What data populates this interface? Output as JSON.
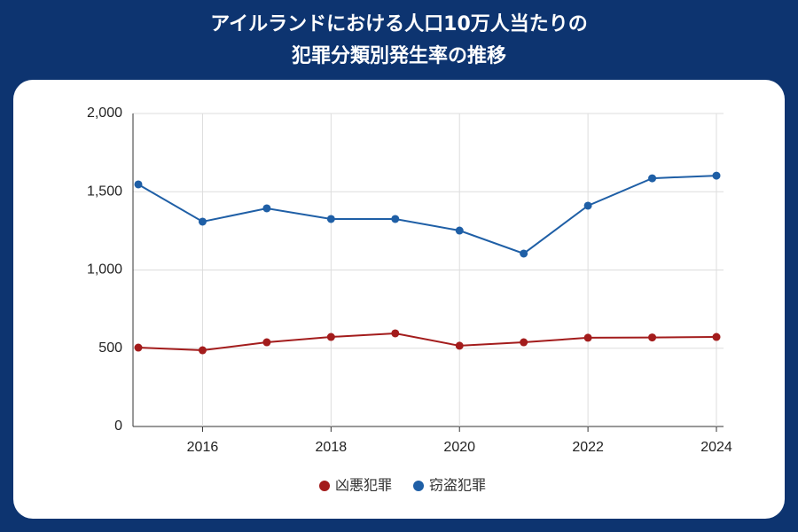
{
  "chart_data": {
    "type": "line",
    "title": [
      "アイルランドにおける人口10万人当たりの",
      "犯罪分類別発生率の推移"
    ],
    "x": [
      2015,
      2016,
      2017,
      2018,
      2019,
      2020,
      2021,
      2022,
      2023,
      2024
    ],
    "series": [
      {
        "name": "凶悪犯罪",
        "color": "#a31c1c",
        "values": [
          504,
          487,
          538,
          572,
          595,
          516,
          538,
          567,
          569,
          572
        ]
      },
      {
        "name": "窃盗犯罪",
        "color": "#1f5fa6",
        "values": [
          1547,
          1309,
          1394,
          1326,
          1326,
          1252,
          1105,
          1411,
          1586,
          1603
        ]
      }
    ],
    "xlim": [
      2015,
      2024
    ],
    "xticks": [
      2016,
      2018,
      2020,
      2022,
      2024
    ],
    "ylim": [
      0,
      2000
    ],
    "yticks": [
      0,
      500,
      {
        "value": 1000,
        "label": "1,000"
      },
      {
        "value": 1500,
        "label": "1,500"
      },
      {
        "value": 2000,
        "label": "2,000"
      }
    ],
    "grid": true,
    "legend": "bottom"
  }
}
